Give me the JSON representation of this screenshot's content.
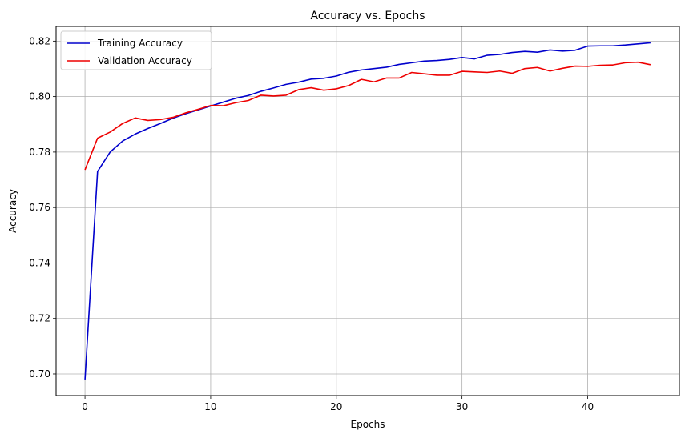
{
  "chart_data": {
    "type": "line",
    "title": "Accuracy vs. Epochs",
    "xlabel": "Epochs",
    "ylabel": "Accuracy",
    "xlim": [
      -2.3,
      47.3
    ],
    "ylim": [
      0.6922,
      0.8253
    ],
    "xticks": [
      0,
      10,
      20,
      30,
      40
    ],
    "yticks": [
      0.7,
      0.72,
      0.74,
      0.76,
      0.78,
      0.8,
      0.82
    ],
    "grid": true,
    "legend_position": "top-left",
    "x": [
      0,
      1,
      2,
      3,
      4,
      5,
      6,
      7,
      8,
      9,
      10,
      11,
      12,
      13,
      14,
      15,
      16,
      17,
      18,
      19,
      20,
      21,
      22,
      23,
      24,
      25,
      26,
      27,
      28,
      29,
      30,
      31,
      32,
      33,
      34,
      35,
      36,
      37,
      38,
      39,
      40,
      41,
      42,
      43,
      44,
      45
    ],
    "series": [
      {
        "name": "Training Accuracy",
        "color": "#0000cc",
        "values": [
          0.698,
          0.773,
          0.78,
          0.784,
          0.7865,
          0.7885,
          0.7903,
          0.7922,
          0.7938,
          0.7952,
          0.7966,
          0.798,
          0.7994,
          0.8004,
          0.8019,
          0.8031,
          0.8044,
          0.8052,
          0.8063,
          0.8066,
          0.8074,
          0.8088,
          0.8096,
          0.8101,
          0.8106,
          0.8116,
          0.8122,
          0.8128,
          0.813,
          0.8134,
          0.8141,
          0.8136,
          0.8149,
          0.8152,
          0.8159,
          0.8163,
          0.816,
          0.8168,
          0.8164,
          0.8167,
          0.8182,
          0.8183,
          0.8183,
          0.8186,
          0.819,
          0.8194
        ]
      },
      {
        "name": "Validation Accuracy",
        "color": "#ee0000",
        "values": [
          0.7736,
          0.785,
          0.7872,
          0.7903,
          0.7923,
          0.7914,
          0.7917,
          0.7925,
          0.7941,
          0.7954,
          0.7968,
          0.7967,
          0.7978,
          0.7986,
          0.8005,
          0.8002,
          0.8005,
          0.8025,
          0.8032,
          0.8023,
          0.8028,
          0.804,
          0.8062,
          0.8053,
          0.8067,
          0.8067,
          0.8087,
          0.8082,
          0.8077,
          0.8077,
          0.8091,
          0.8089,
          0.8087,
          0.8092,
          0.8084,
          0.8101,
          0.8105,
          0.8092,
          0.8102,
          0.811,
          0.8109,
          0.8113,
          0.8114,
          0.8122,
          0.8124,
          0.8115
        ]
      }
    ]
  }
}
